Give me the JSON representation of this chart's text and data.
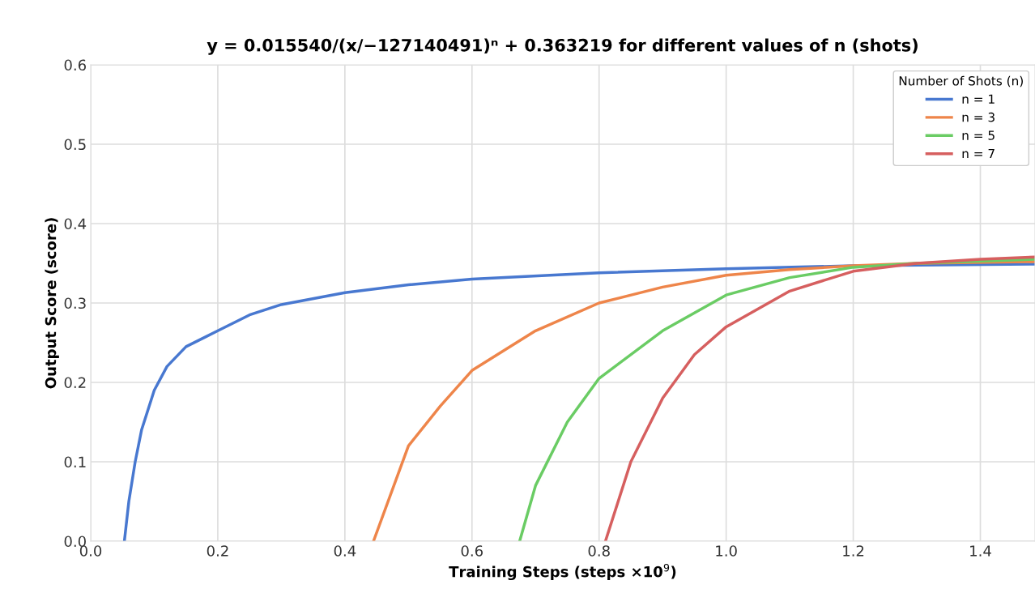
{
  "chart_data": {
    "type": "line",
    "title": "y = 0.015540/(x/−127140491)ⁿ + 0.363219 for different values of n (shots)",
    "xlabel": "Training Steps (steps ×10$^{9}$)",
    "ylabel": "Output Score (score)",
    "legend_title": "Number of Shots (n)",
    "legend": "top right",
    "grid": true,
    "marker": "none",
    "line_style": "solid",
    "xlim": [
      0,
      1.486
    ],
    "xticks": [
      {
        "value": 0,
        "label": "0.0"
      },
      0.2,
      0.4,
      0.6,
      0.8,
      {
        "value": 1,
        "label": "1.0"
      },
      1.2,
      1.4
    ],
    "ylim": [
      0,
      0.6
    ],
    "yticks": [
      {
        "value": 0,
        "label": "0.0"
      },
      0.1,
      0.2,
      0.3,
      0.4,
      0.5,
      0.6
    ],
    "series": [
      {
        "name": "n = 1",
        "color": "#4878d0",
        "x": [
          0.053,
          0.06,
          0.07,
          0.08,
          0.1,
          0.12,
          0.15,
          0.2,
          0.25,
          0.3,
          0.4,
          0.5,
          0.6,
          0.8,
          1.0,
          1.2,
          1.486
        ],
        "values": [
          0,
          0.05,
          0.1,
          0.14,
          0.19,
          0.22,
          0.245,
          0.265,
          0.285,
          0.298,
          0.313,
          0.323,
          0.33,
          0.338,
          0.343,
          0.347,
          0.349
        ]
      },
      {
        "name": "n = 3",
        "color": "#ee854a",
        "x": [
          0.445,
          0.5,
          0.55,
          0.6,
          0.7,
          0.8,
          0.9,
          1.0,
          1.1,
          1.2,
          1.3,
          1.486
        ],
        "values": [
          0,
          0.12,
          0.17,
          0.215,
          0.265,
          0.3,
          0.32,
          0.335,
          0.342,
          0.347,
          0.35,
          0.352
        ]
      },
      {
        "name": "n = 5",
        "color": "#6acc64",
        "x": [
          0.675,
          0.7,
          0.75,
          0.8,
          0.9,
          1.0,
          1.1,
          1.2,
          1.3,
          1.486
        ],
        "values": [
          0,
          0.07,
          0.15,
          0.205,
          0.265,
          0.31,
          0.332,
          0.345,
          0.35,
          0.355
        ]
      },
      {
        "name": "n = 7",
        "color": "#d65f5f",
        "x": [
          0.81,
          0.85,
          0.9,
          0.95,
          1.0,
          1.1,
          1.2,
          1.3,
          1.4,
          1.486
        ],
        "values": [
          0,
          0.1,
          0.18,
          0.235,
          0.27,
          0.315,
          0.34,
          0.35,
          0.355,
          0.358
        ]
      }
    ]
  }
}
